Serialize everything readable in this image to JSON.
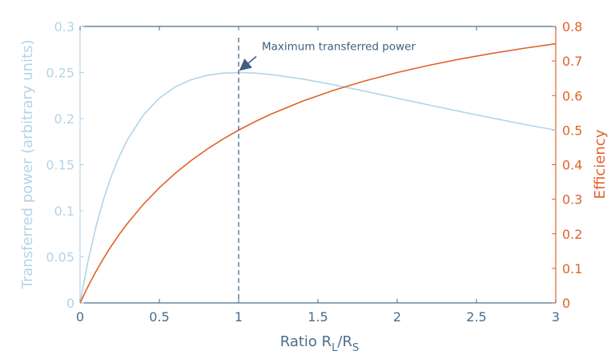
{
  "chart_data": {
    "type": "line",
    "xlabel": {
      "main": "Ratio R",
      "sub1": "L",
      "mid": "/R",
      "sub2": "S"
    },
    "ylabel_left": "Transferred power (arbitrary units)",
    "ylabel_right": "Efficiency",
    "xlim": [
      0,
      3
    ],
    "ylim_left": [
      0,
      0.3
    ],
    "ylim_right": [
      0,
      0.8
    ],
    "xticks": [
      0,
      0.5,
      1,
      1.5,
      2,
      2.5,
      3
    ],
    "xtick_labels": [
      "0",
      "0.5",
      "1",
      "1.5",
      "2",
      "2.5",
      "3"
    ],
    "yticks_left": [
      0,
      0.05,
      0.1,
      0.15,
      0.2,
      0.25,
      0.3
    ],
    "ytick_labels_left": [
      "0",
      "0.05",
      "0.1",
      "0.15",
      "0.2",
      "0.25",
      "0.3"
    ],
    "yticks_right": [
      0,
      0.1,
      0.2,
      0.3,
      0.4,
      0.5,
      0.6,
      0.7,
      0.8
    ],
    "ytick_labels_right": [
      "0",
      "0.1",
      "0.2",
      "0.3",
      "0.4",
      "0.5",
      "0.6",
      "0.7",
      "0.8"
    ],
    "grid": false,
    "series": [
      {
        "axis": "left",
        "color": "#b3d4e8",
        "x": [
          0,
          0.05,
          0.1,
          0.15,
          0.2,
          0.25,
          0.3,
          0.4,
          0.5,
          0.6,
          0.7,
          0.8,
          0.9,
          1.0,
          1.1,
          1.2,
          1.4,
          1.6,
          1.8,
          2.0,
          2.2,
          2.4,
          2.6,
          2.8,
          3.0
        ],
        "values": [
          0,
          0.0454,
          0.0826,
          0.1134,
          0.1389,
          0.16,
          0.1775,
          0.2041,
          0.2222,
          0.2344,
          0.2422,
          0.2469,
          0.2493,
          0.25,
          0.2494,
          0.2479,
          0.2431,
          0.2367,
          0.2296,
          0.2222,
          0.2148,
          0.2076,
          0.2006,
          0.1938,
          0.1875
        ]
      },
      {
        "axis": "right",
        "color": "#e0622a",
        "x": [
          0,
          0.05,
          0.1,
          0.15,
          0.2,
          0.25,
          0.3,
          0.4,
          0.5,
          0.6,
          0.7,
          0.8,
          0.9,
          1.0,
          1.1,
          1.2,
          1.4,
          1.6,
          1.8,
          2.0,
          2.2,
          2.4,
          2.6,
          2.8,
          3.0
        ],
        "values": [
          0,
          0.0476,
          0.0909,
          0.1304,
          0.1667,
          0.2,
          0.2308,
          0.2857,
          0.3333,
          0.375,
          0.4118,
          0.4444,
          0.4737,
          0.5,
          0.5238,
          0.5455,
          0.5833,
          0.6154,
          0.6429,
          0.6667,
          0.6875,
          0.7059,
          0.7222,
          0.7368,
          0.75
        ]
      }
    ],
    "annotation": {
      "text": "Maximum transferred power",
      "x": 1.0,
      "y_left": 0.25,
      "marker_line_x": 1.0
    },
    "colors": {
      "axis": "#4a6d8c",
      "left_axis_label": "#b3d4e8",
      "right_axis": "#e0622a",
      "annotation": "#3d5f80"
    }
  }
}
